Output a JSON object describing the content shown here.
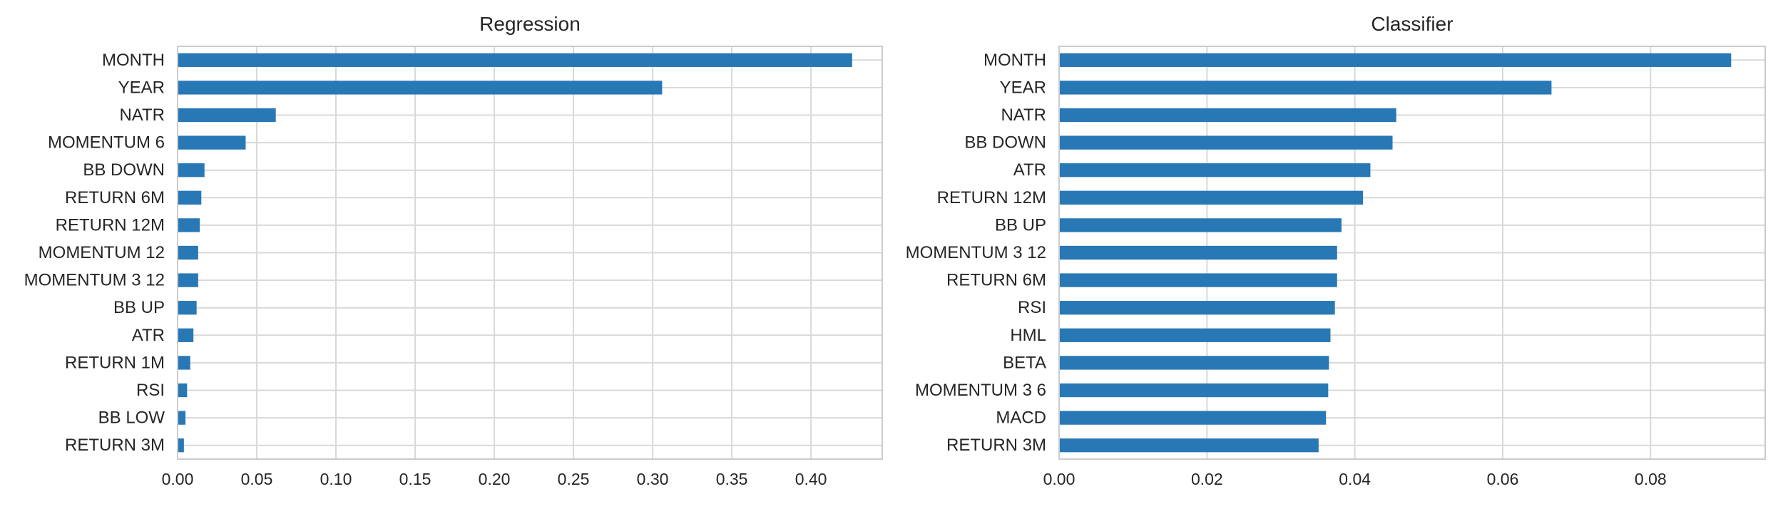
{
  "chart_data": [
    {
      "type": "bar",
      "orientation": "horizontal",
      "title": "Regression",
      "xlabel": "",
      "ylabel": "",
      "grid": true,
      "xlim": [
        0,
        0.445
      ],
      "xticks": [
        0.0,
        0.05,
        0.1,
        0.15,
        0.2,
        0.25,
        0.3,
        0.35,
        0.4
      ],
      "xtick_labels": [
        "0.00",
        "0.05",
        "0.10",
        "0.15",
        "0.20",
        "0.25",
        "0.30",
        "0.35",
        "0.40"
      ],
      "bar_color": "#2878b5",
      "categories": [
        "MONTH",
        "YEAR",
        "NATR",
        "MOMENTUM 6",
        "BB DOWN",
        "RETURN 6M",
        "RETURN 12M",
        "MOMENTUM 12",
        "MOMENTUM 3 12",
        "BB UP",
        "ATR",
        "RETURN 1M",
        "RSI",
        "BB LOW",
        "RETURN 3M"
      ],
      "values": [
        0.426,
        0.306,
        0.062,
        0.043,
        0.017,
        0.015,
        0.014,
        0.013,
        0.013,
        0.012,
        0.01,
        0.008,
        0.006,
        0.005,
        0.004
      ]
    },
    {
      "type": "bar",
      "orientation": "horizontal",
      "title": "Classifier",
      "xlabel": "",
      "ylabel": "",
      "grid": true,
      "xlim": [
        0,
        0.0955
      ],
      "xticks": [
        0.0,
        0.02,
        0.04,
        0.06,
        0.08
      ],
      "xtick_labels": [
        "0.00",
        "0.02",
        "0.04",
        "0.06",
        "0.08"
      ],
      "bar_color": "#2878b5",
      "categories": [
        "MONTH",
        "YEAR",
        "NATR",
        "BB DOWN",
        "ATR",
        "RETURN 12M",
        "BB UP",
        "MOMENTUM 3 12",
        "RETURN 6M",
        "RSI",
        "HML",
        "BETA",
        "MOMENTUM 3 6",
        "MACD",
        "RETURN 3M"
      ],
      "values": [
        0.0909,
        0.0666,
        0.0456,
        0.0451,
        0.0421,
        0.0411,
        0.0382,
        0.0376,
        0.0376,
        0.0373,
        0.0367,
        0.0365,
        0.0364,
        0.0361,
        0.0351
      ]
    }
  ]
}
